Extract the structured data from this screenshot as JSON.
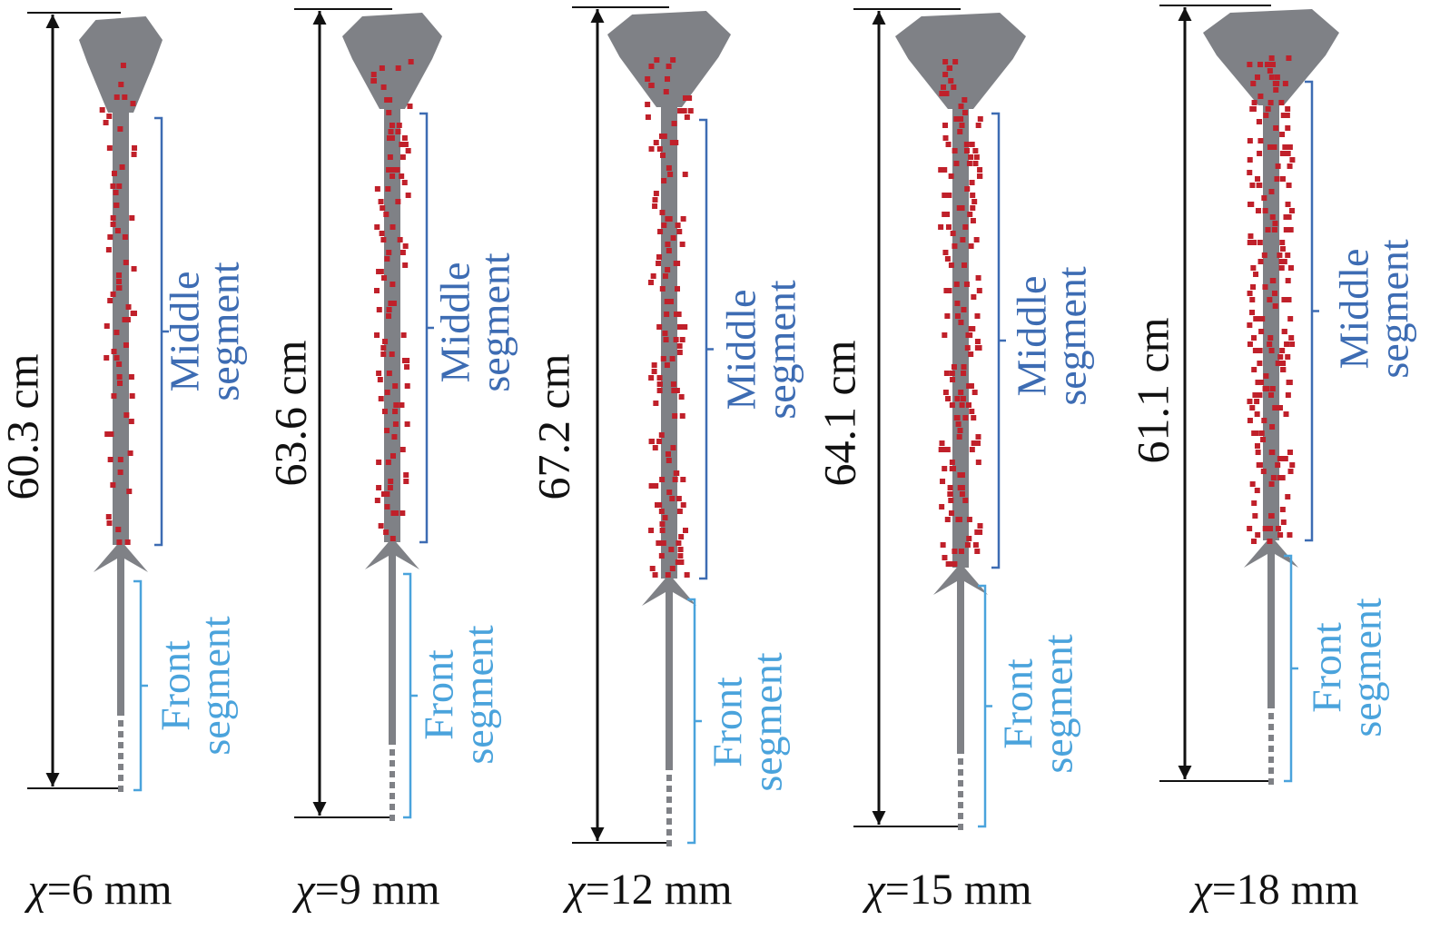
{
  "panels": [
    {
      "length": "60.3 cm",
      "middle": [
        "Middle",
        "segment"
      ],
      "front": [
        "Front",
        "segment"
      ],
      "symbol": "χ",
      "caption": "=6 mm"
    },
    {
      "length": "63.6 cm",
      "middle": [
        "Middle",
        "segment"
      ],
      "front": [
        "Front",
        "segment"
      ],
      "symbol": "χ",
      "caption": "=9 mm"
    },
    {
      "length": "67.2 cm",
      "middle": [
        "Middle",
        "segment"
      ],
      "front": [
        "Front",
        "segment"
      ],
      "symbol": "χ",
      "caption": "=12 mm"
    },
    {
      "length": "64.1 cm",
      "middle": [
        "Middle",
        "segment"
      ],
      "front": [
        "Front",
        "segment"
      ],
      "symbol": "χ",
      "caption": "=15 mm"
    },
    {
      "length": "61.1 cm",
      "middle": [
        "Middle",
        "segment"
      ],
      "front": [
        "Front",
        "segment"
      ],
      "symbol": "χ",
      "caption": "=18 mm"
    }
  ]
}
